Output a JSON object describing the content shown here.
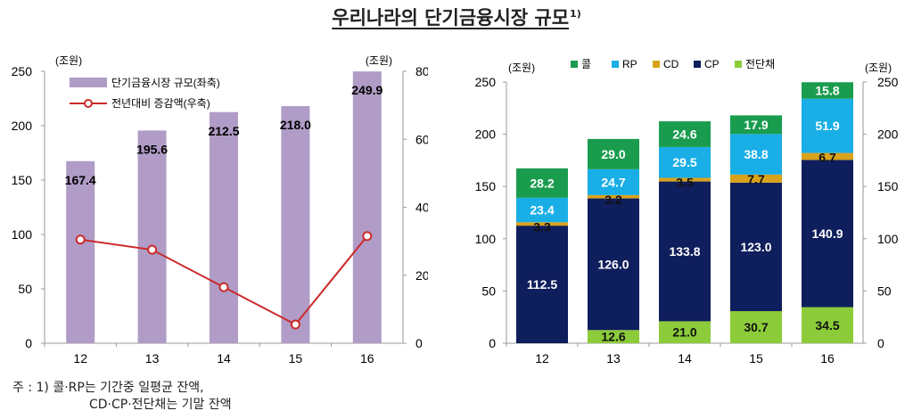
{
  "title": "우리나라의 단기금융시장 규모",
  "title_sup": "1)",
  "footnote": {
    "line1": "주 : 1) 콜·RP는 기간중 일평균 잔액,",
    "line2": "CD·CP·전단채는 기말 잔액"
  },
  "colors": {
    "bar_left": "#b09cc7",
    "line_left": "#cc2a2a",
    "call": "#1a9c4f",
    "rp": "#19aee6",
    "cd": "#d9a21b",
    "cp": "#0f1e5c",
    "stb": "#8ccc3a"
  },
  "chart_data": [
    {
      "type": "bar+line",
      "categories": [
        "12",
        "13",
        "14",
        "15",
        "16"
      ],
      "y_unit_left": "(조원)",
      "y_unit_right": "(조원)",
      "ylim_left": [
        0,
        250
      ],
      "yticks_left": [
        0,
        50,
        100,
        150,
        200,
        250
      ],
      "ylim_right": [
        0,
        80
      ],
      "yticks_right": [
        0,
        20,
        40,
        60,
        80
      ],
      "legend_position": "top-left",
      "series": [
        {
          "name": "단기금융시장 규모(좌축)",
          "kind": "bar",
          "axis": "left",
          "values": [
            167.4,
            195.6,
            212.5,
            218.0,
            249.9
          ],
          "labels": [
            "167.4",
            "195.6",
            "212.5",
            "218.0",
            "249.9"
          ]
        },
        {
          "name": "전년대비 증감액(우축)",
          "kind": "line",
          "axis": "right",
          "values": [
            30.5,
            27.5,
            16.5,
            5.5,
            31.5
          ]
        }
      ]
    },
    {
      "type": "stacked-bar",
      "categories": [
        "12",
        "13",
        "14",
        "15",
        "16"
      ],
      "y_unit_left": "(조원)",
      "y_unit_right": "(조원)",
      "ylim": [
        0,
        250
      ],
      "yticks": [
        0,
        50,
        100,
        150,
        200,
        250
      ],
      "legend_position": "top",
      "series": [
        {
          "name": "전단채",
          "color_key": "stb",
          "values": [
            0,
            12.6,
            21.0,
            30.7,
            34.5
          ],
          "labels": [
            "",
            "12.6",
            "21.0",
            "30.7",
            "34.5"
          ]
        },
        {
          "name": "CP",
          "color_key": "cp",
          "values": [
            112.5,
            126.0,
            133.8,
            123.0,
            140.9
          ],
          "labels": [
            "112.5",
            "126.0",
            "133.8",
            "123.0",
            "140.9"
          ]
        },
        {
          "name": "CD",
          "color_key": "cd",
          "values": [
            3.3,
            3.2,
            3.5,
            7.7,
            6.7
          ],
          "labels": [
            "3.3",
            "3.2",
            "3.5",
            "7.7",
            "6.7"
          ]
        },
        {
          "name": "RP",
          "color_key": "rp",
          "values": [
            23.4,
            24.7,
            29.5,
            38.8,
            51.9
          ],
          "labels": [
            "23.4",
            "24.7",
            "29.5",
            "38.8",
            "51.9"
          ]
        },
        {
          "name": "콜",
          "color_key": "call",
          "values": [
            28.2,
            29.0,
            24.6,
            17.9,
            15.8
          ],
          "labels": [
            "28.2",
            "29.0",
            "24.6",
            "17.9",
            "15.8"
          ]
        }
      ],
      "legend_order": [
        "콜",
        "RP",
        "CD",
        "CP",
        "전단채"
      ]
    }
  ]
}
